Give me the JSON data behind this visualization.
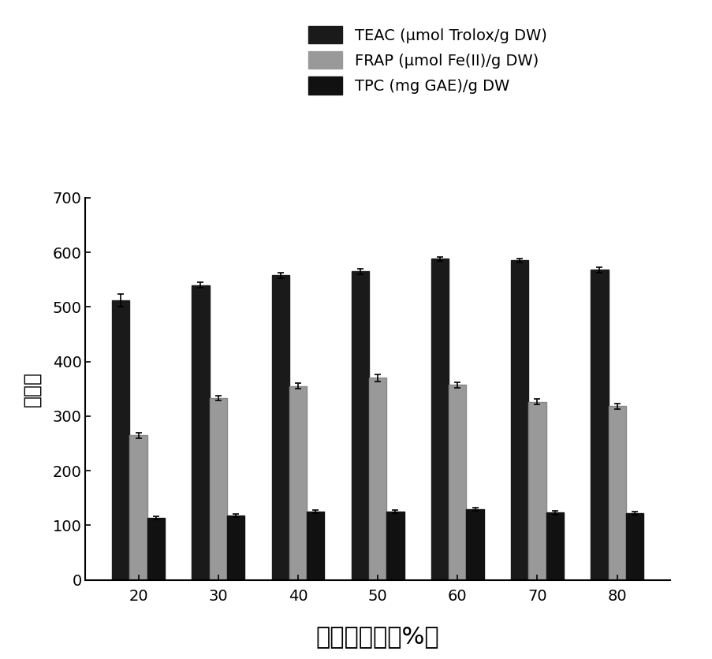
{
  "categories": [
    20,
    30,
    40,
    50,
    60,
    70,
    80
  ],
  "teac_values": [
    512,
    540,
    558,
    565,
    588,
    585,
    568
  ],
  "teac_errors": [
    12,
    5,
    5,
    5,
    4,
    4,
    5
  ],
  "frap_values": [
    265,
    333,
    355,
    370,
    357,
    326,
    318
  ],
  "frap_errors": [
    5,
    5,
    5,
    7,
    5,
    5,
    5
  ],
  "tpc_values": [
    113,
    118,
    125,
    125,
    130,
    123,
    122
  ],
  "tpc_errors": [
    3,
    3,
    3,
    3,
    3,
    3,
    3
  ],
  "teac_color": "#1a1a1a",
  "frap_color": "#999999",
  "tpc_color": "#111111",
  "bar_width": 0.22,
  "ylim": [
    0,
    700
  ],
  "yticks": [
    0,
    100,
    200,
    300,
    400,
    500,
    600,
    700
  ],
  "ylabel": "响应値",
  "xlabel": "乙醇浓度　（%）",
  "legend_labels": [
    "TEAC (μmol Trolox/g DW)",
    "FRAP (μmol Fe(II)/g DW)",
    "TPC (mg GAE)/g DW"
  ],
  "background_color": "#ffffff",
  "axis_fontsize": 18,
  "tick_fontsize": 14,
  "legend_fontsize": 14
}
